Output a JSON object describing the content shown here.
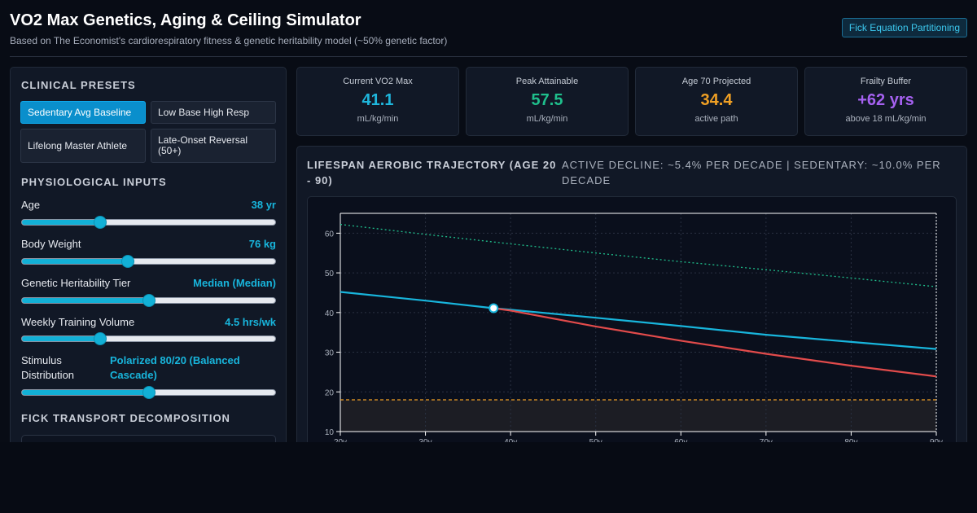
{
  "header": {
    "title": "VO2 Max Genetics, Aging & Ceiling Simulator",
    "subtitle": "Based on The Economist's cardiorespiratory fitness & genetic heritability model (~50% genetic factor)",
    "fick_button": "Fick Equation Partitioning"
  },
  "presets": {
    "heading": "CLINICAL PRESETS",
    "items": [
      {
        "label": "Sedentary Avg Baseline",
        "active": true
      },
      {
        "label": "Low Base High Resp",
        "active": false
      },
      {
        "label": "Lifelong Master Athlete",
        "active": false
      },
      {
        "label": "Late-Onset Reversal (50+)",
        "active": false
      }
    ]
  },
  "inputs": {
    "heading": "PHYSIOLOGICAL INPUTS",
    "age": {
      "label": "Age",
      "value": "38 yr",
      "fraction": 0.31
    },
    "weight": {
      "label": "Body Weight",
      "value": "76 kg",
      "fraction": 0.42
    },
    "genetic": {
      "label": "Genetic Heritability Tier",
      "value": "Median (Median)",
      "fraction": 0.5
    },
    "training": {
      "label": "Weekly Training Volume",
      "value": "4.5 hrs/wk",
      "fraction": 0.31
    },
    "stimulus": {
      "label": "Stimulus Distribution",
      "value": "Polarized 80/20 (Balanced Cascade)",
      "fraction": 0.5
    }
  },
  "fick": {
    "heading": "FICK TRANSPORT DECOMPOSITION"
  },
  "cards": [
    {
      "label": "Current VO2 Max",
      "value": "41.1",
      "unit": "mL/kg/min",
      "color": "#1fb6dc"
    },
    {
      "label": "Peak Attainable",
      "value": "57.5",
      "unit": "mL/kg/min",
      "color": "#1fbf8c"
    },
    {
      "label": "Age 70 Projected",
      "value": "34.4",
      "unit": "active path",
      "color": "#f0a024"
    },
    {
      "label": "Frailty Buffer",
      "value": "+62 yrs",
      "unit": "above 18 mL/kg/min",
      "color": "#a561f0"
    }
  ],
  "chart": {
    "title": "LIFESPAN AEROBIC TRAJECTORY (AGE 20 - 90)",
    "subtitle": "Active decline: ~5.4% per decade | Sedentary: ~10.0% per decade"
  },
  "chart_data": {
    "type": "line",
    "x_tick_labels": [
      "20y",
      "30y",
      "40y",
      "50y",
      "60y",
      "70y",
      "80y",
      "90y"
    ],
    "xlim": [
      20,
      90
    ],
    "ylim": [
      10,
      65
    ],
    "y_ticks": [
      10,
      20,
      30,
      40,
      50,
      60
    ],
    "grid": true,
    "threshold": 18,
    "current_point": {
      "x": 38,
      "y": 41.1
    },
    "series": [
      {
        "color": "#1fbf8c",
        "style": "dotted",
        "points": [
          [
            20,
            62.2
          ],
          [
            30,
            59.7
          ],
          [
            40,
            57.3
          ],
          [
            50,
            55.0
          ],
          [
            60,
            52.8
          ],
          [
            70,
            50.8
          ],
          [
            80,
            48.7
          ],
          [
            90,
            46.5
          ]
        ]
      },
      {
        "color": "#18b5dc",
        "style": "solid",
        "points": [
          [
            20,
            45.2
          ],
          [
            30,
            43.0
          ],
          [
            38,
            41.1
          ],
          [
            40,
            40.7
          ],
          [
            50,
            38.7
          ],
          [
            60,
            36.6
          ],
          [
            70,
            34.4
          ],
          [
            80,
            32.6
          ],
          [
            90,
            30.8
          ]
        ]
      },
      {
        "color": "#e24b4b",
        "style": "solid",
        "points": [
          [
            38,
            41.1
          ],
          [
            40,
            40.5
          ],
          [
            50,
            36.5
          ],
          [
            60,
            32.9
          ],
          [
            70,
            29.6
          ],
          [
            80,
            26.6
          ],
          [
            90,
            23.9
          ]
        ]
      },
      {
        "color": "#f0a024",
        "style": "dashed",
        "points": [
          [
            20,
            18
          ],
          [
            90,
            18
          ]
        ]
      }
    ]
  }
}
